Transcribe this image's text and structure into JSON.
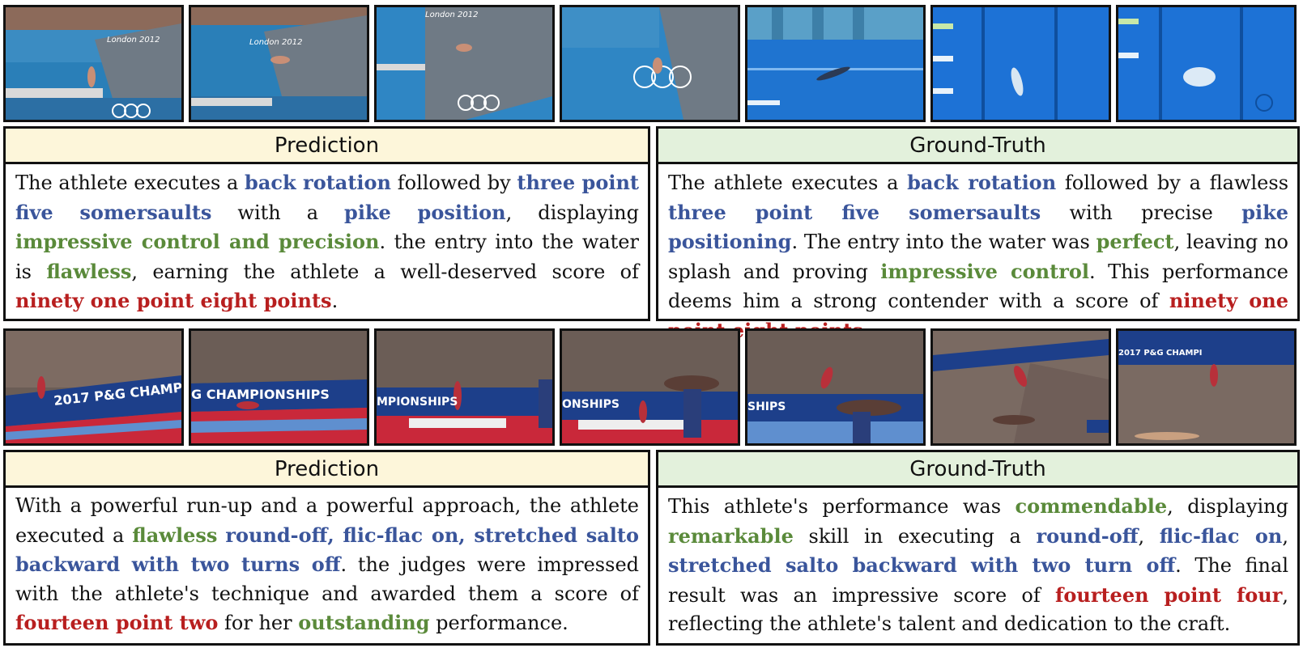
{
  "examples": [
    {
      "frames": [
        {
          "scene": "diving-platform-approach"
        },
        {
          "scene": "diving-takeoff"
        },
        {
          "scene": "diving-midair-rings"
        },
        {
          "scene": "diving-midair-rings"
        },
        {
          "scene": "diving-underwater-view"
        },
        {
          "scene": "diving-entry"
        },
        {
          "scene": "diving-splash"
        }
      ],
      "prediction": {
        "header": "Prediction",
        "segments": [
          {
            "text": "The athlete executes a ",
            "style": "plain"
          },
          {
            "text": "back rotation",
            "style": "blue"
          },
          {
            "text": " followed by ",
            "style": "plain"
          },
          {
            "text": "three point five somersaults",
            "style": "blue"
          },
          {
            "text": " with a ",
            "style": "plain"
          },
          {
            "text": "pike position",
            "style": "blue"
          },
          {
            "text": ", displaying ",
            "style": "plain"
          },
          {
            "text": "impressive control and precision",
            "style": "green"
          },
          {
            "text": ". the entry into the water is ",
            "style": "plain"
          },
          {
            "text": "flawless",
            "style": "green"
          },
          {
            "text": ", earning the athlete a well-deserved score of ",
            "style": "plain"
          },
          {
            "text": "ninety one point eight points",
            "style": "red"
          },
          {
            "text": ".",
            "style": "plain"
          }
        ]
      },
      "ground_truth": {
        "header": "Ground-Truth",
        "segments": [
          {
            "text": "The athlete executes a ",
            "style": "plain"
          },
          {
            "text": "back rotation",
            "style": "blue"
          },
          {
            "text": " followed by a flawless ",
            "style": "plain"
          },
          {
            "text": "three point five somersaults",
            "style": "blue"
          },
          {
            "text": " with precise ",
            "style": "plain"
          },
          {
            "text": "pike positioning",
            "style": "blue"
          },
          {
            "text": ". The entry into the water was ",
            "style": "plain"
          },
          {
            "text": "perfect",
            "style": "green"
          },
          {
            "text": ", leaving no splash and proving ",
            "style": "plain"
          },
          {
            "text": "impressive control",
            "style": "green"
          },
          {
            "text": ". This performance deems him a strong contender with a score of ",
            "style": "plain"
          },
          {
            "text": "ninety one point eight points",
            "style": "red"
          },
          {
            "text": ".",
            "style": "plain"
          }
        ]
      }
    },
    {
      "frames": [
        {
          "scene": "vault-runup"
        },
        {
          "scene": "vault-roundoff"
        },
        {
          "scene": "vault-flicflac"
        },
        {
          "scene": "vault-table"
        },
        {
          "scene": "vault-flight"
        },
        {
          "scene": "vault-salto"
        },
        {
          "scene": "vault-landing"
        }
      ],
      "prediction": {
        "header": "Prediction",
        "segments": [
          {
            "text": "With a powerful run-up and a powerful approach, the athlete executed a ",
            "style": "plain"
          },
          {
            "text": "flawless",
            "style": "green"
          },
          {
            "text": " ",
            "style": "plain"
          },
          {
            "text": "round-off, flic-flac on, stretched salto backward with two turns off",
            "style": "blue"
          },
          {
            "text": ". the judges were impressed with the athlete's technique and awarded them a score of ",
            "style": "plain"
          },
          {
            "text": "fourteen point two",
            "style": "red"
          },
          {
            "text": " for her ",
            "style": "plain"
          },
          {
            "text": "outstanding",
            "style": "green"
          },
          {
            "text": " performance.",
            "style": "plain"
          }
        ]
      },
      "ground_truth": {
        "header": "Ground-Truth",
        "segments": [
          {
            "text": "This athlete's performance was ",
            "style": "plain"
          },
          {
            "text": "commendable",
            "style": "green"
          },
          {
            "text": ", displaying ",
            "style": "plain"
          },
          {
            "text": "remarkable",
            "style": "green"
          },
          {
            "text": " skill in executing a ",
            "style": "plain"
          },
          {
            "text": "round-off",
            "style": "blue"
          },
          {
            "text": ", ",
            "style": "plain"
          },
          {
            "text": "flic-flac on",
            "style": "blue"
          },
          {
            "text": ", ",
            "style": "plain"
          },
          {
            "text": "stretched salto backward with two turn off",
            "style": "blue"
          },
          {
            "text": ". The final result was an impressive score of ",
            "style": "plain"
          },
          {
            "text": "fourteen point four",
            "style": "red"
          },
          {
            "text": ", reflecting the athlete's talent and dedication to the craft.",
            "style": "plain"
          }
        ]
      }
    }
  ],
  "colors": {
    "action_blue": "#3a559b",
    "quality_green": "#5a8a3a",
    "score_red": "#b81f1f",
    "prediction_header_bg": "#fdf6da",
    "ground_truth_header_bg": "#e3f1dc"
  }
}
